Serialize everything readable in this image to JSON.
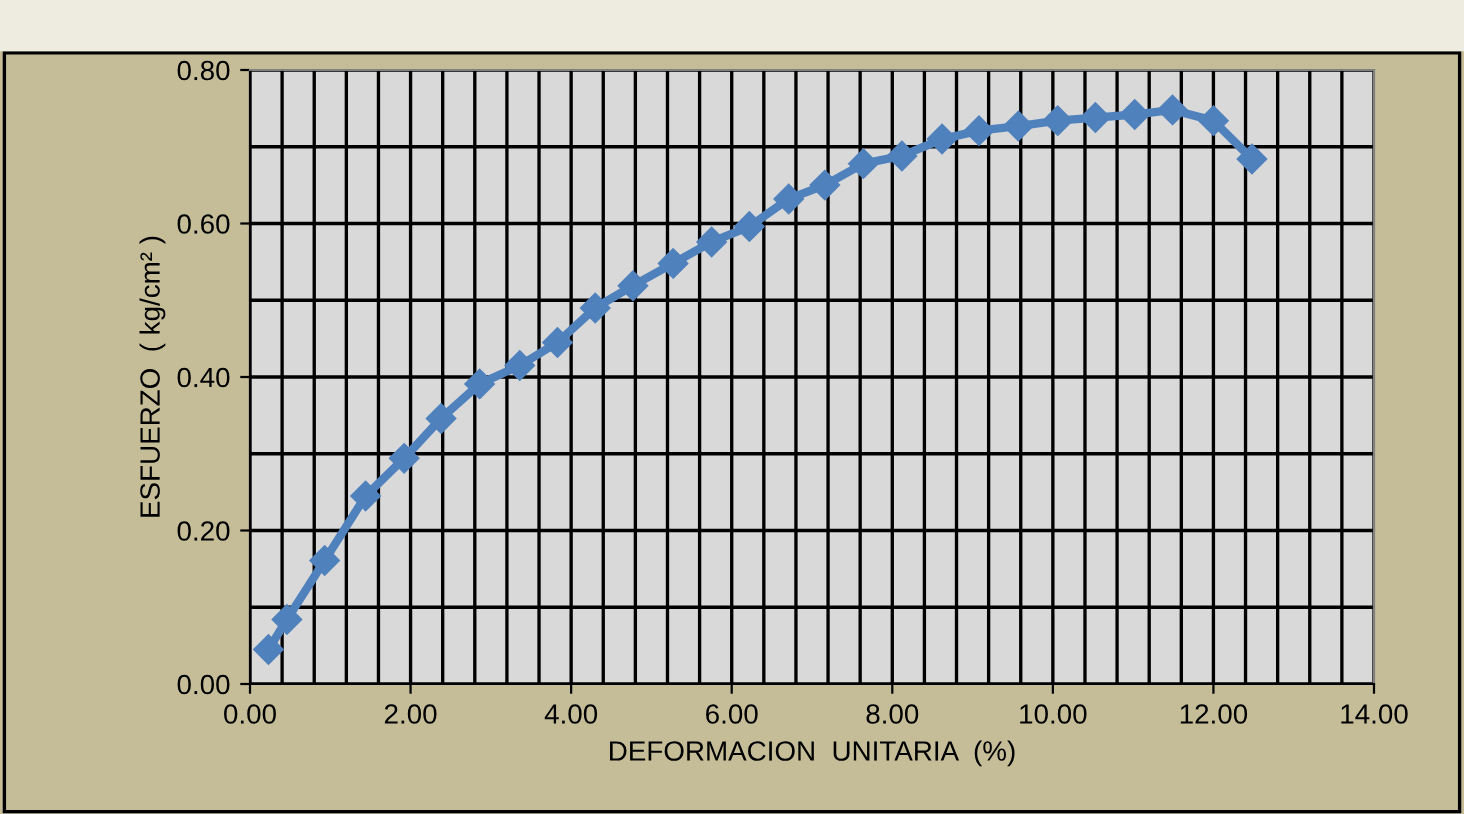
{
  "chart_data": {
    "type": "line",
    "xlabel": "DEFORMACION  UNITARIA  (%)",
    "ylabel": "ESFUERZO  ( kg/cm² )",
    "x": [
      0.23,
      0.46,
      0.93,
      1.44,
      1.92,
      2.38,
      2.86,
      3.36,
      3.83,
      4.3,
      4.77,
      5.27,
      5.75,
      6.22,
      6.71,
      7.16,
      7.64,
      8.12,
      8.62,
      9.08,
      9.57,
      10.06,
      10.53,
      11.02,
      11.49,
      12.0,
      12.48
    ],
    "series": [
      {
        "color": "#4f81bd",
        "values": [
          0.045,
          0.084,
          0.161,
          0.245,
          0.294,
          0.346,
          0.391,
          0.415,
          0.445,
          0.49,
          0.519,
          0.548,
          0.576,
          0.596,
          0.632,
          0.65,
          0.678,
          0.688,
          0.71,
          0.721,
          0.727,
          0.734,
          0.738,
          0.742,
          0.748,
          0.734,
          0.684
        ]
      }
    ],
    "xlim": [
      0,
      14
    ],
    "xticks": [
      {
        "value": 0,
        "label": "0.00"
      },
      {
        "value": 2,
        "label": "2.00"
      },
      {
        "value": 4,
        "label": "4.00"
      },
      {
        "value": 6,
        "label": "6.00"
      },
      {
        "value": 8,
        "label": "8.00"
      },
      {
        "value": 10,
        "label": "10.00"
      },
      {
        "value": 12,
        "label": "12.00"
      },
      {
        "value": 14,
        "label": "14.00"
      }
    ],
    "ylim": [
      0,
      0.8
    ],
    "yticks": [
      {
        "value": 0,
        "label": "0.00"
      },
      {
        "value": 0.2,
        "label": "0.20"
      },
      {
        "value": 0.4,
        "label": "0.40"
      },
      {
        "value": 0.6,
        "label": "0.60"
      },
      {
        "value": 0.8,
        "label": "0.80"
      }
    ],
    "grid": true,
    "marker": "diamond",
    "line_style": "solid"
  }
}
